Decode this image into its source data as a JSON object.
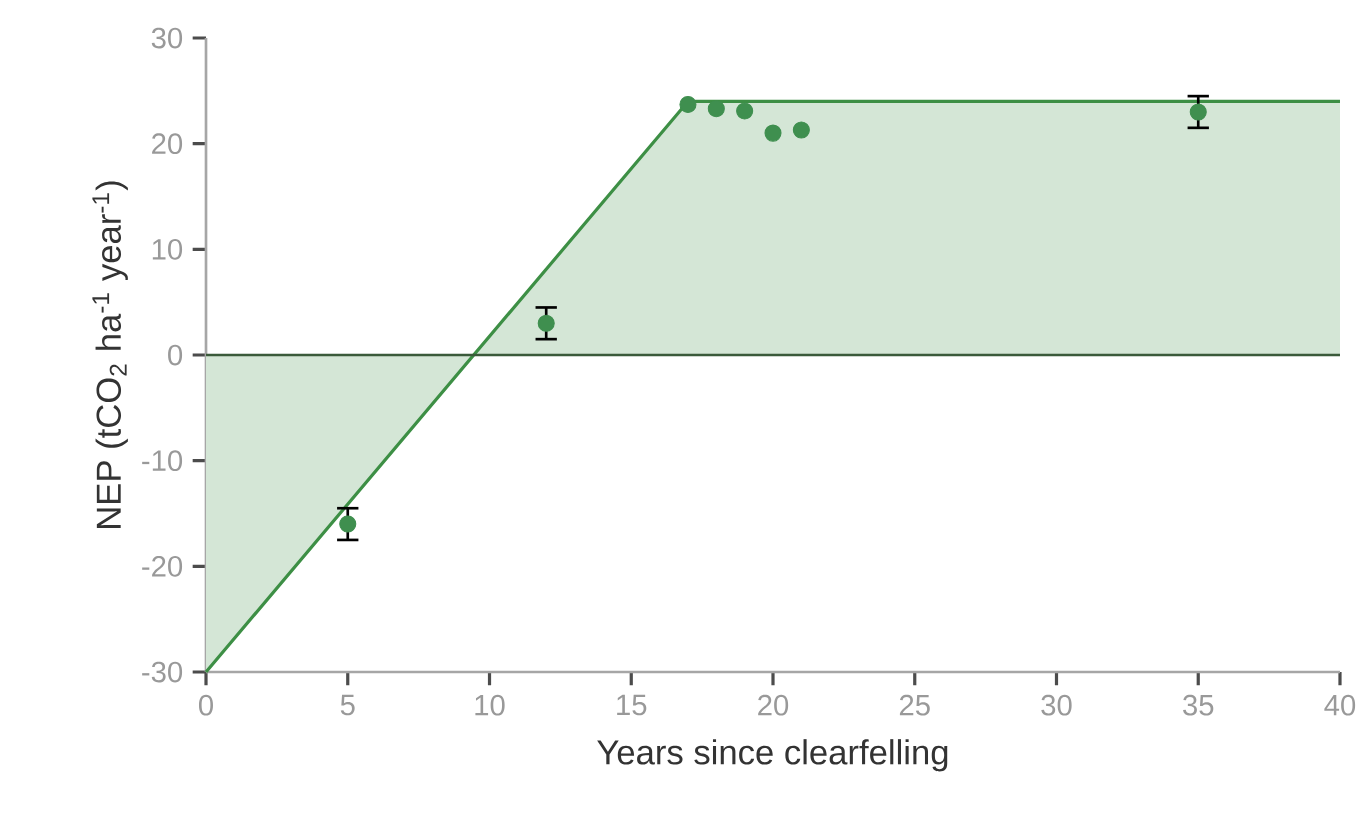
{
  "chart_data": {
    "type": "area",
    "xlabel": "Years since clearfelling",
    "ylabel": "NEP  (tCO$_{2}$ ha$^{-1}$ year$^{-1}$)",
    "xlim": [
      0,
      40
    ],
    "ylim": [
      -30,
      30
    ],
    "xticks": [
      0,
      5,
      10,
      15,
      20,
      25,
      30,
      35,
      40
    ],
    "yticks": [
      -30,
      -20,
      -10,
      0,
      10,
      20,
      30
    ],
    "grid": false,
    "marker": "circle",
    "series": [
      {
        "color": "#3d8f45",
        "marker": "none",
        "x": [
          0,
          17,
          40
        ],
        "values": [
          -30,
          24,
          24
        ]
      },
      {
        "type": "scatter",
        "color": "#3f8f4f",
        "x": [
          5,
          12,
          17,
          18,
          19,
          20,
          21,
          35
        ],
        "values": [
          -16,
          3,
          23.7,
          23.3,
          23.1,
          21,
          21.3,
          23
        ],
        "errors": [
          1.5,
          1.5,
          null,
          null,
          null,
          null,
          null,
          1.5
        ]
      }
    ],
    "ref_lines": [
      {
        "axis": "y",
        "value": 0,
        "color": "#3a5a3a"
      }
    ]
  }
}
